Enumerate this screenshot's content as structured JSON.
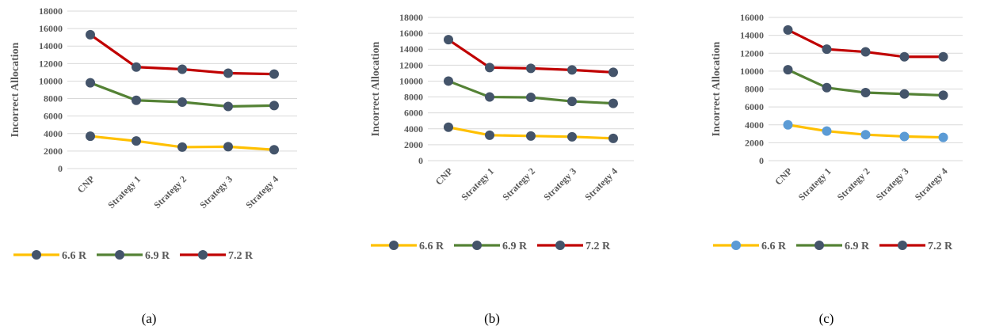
{
  "colors": {
    "axis_text": "#595959",
    "grid": "#d9d9d9",
    "marker": "#44546a",
    "marker_light": "#5b9bd5"
  },
  "chart_data": [
    {
      "type": "line",
      "caption": "(a)",
      "ylabel": "Incorrect Allocation",
      "categories": [
        "CNP",
        "Strategy 1",
        "Strategy 2",
        "Strategy 3",
        "Strategy 4"
      ],
      "ylim": [
        0,
        18000
      ],
      "yticks": [
        0,
        2000,
        4000,
        6000,
        8000,
        10000,
        12000,
        14000,
        16000,
        18000
      ],
      "grid": true,
      "legend_position": "bottom",
      "series": [
        {
          "name": "6.6 R",
          "color": "#ffc000",
          "marker_color": "#44546a",
          "values": [
            3700,
            3150,
            2450,
            2500,
            2150
          ]
        },
        {
          "name": "6.9 R",
          "color": "#548235",
          "marker_color": "#44546a",
          "values": [
            9800,
            7800,
            7600,
            7100,
            7200
          ]
        },
        {
          "name": "7.2 R",
          "color": "#c00000",
          "marker_color": "#44546a",
          "values": [
            15300,
            11600,
            11350,
            10900,
            10800
          ]
        }
      ]
    },
    {
      "type": "line",
      "caption": "(b)",
      "ylabel": "Incorrect Allocation",
      "categories": [
        "CNP",
        "Strategy 1",
        "Strategy 2",
        "Strategy 3",
        "Strategy 4"
      ],
      "ylim": [
        0,
        18000
      ],
      "yticks": [
        0,
        2000,
        4000,
        6000,
        8000,
        10000,
        12000,
        14000,
        16000,
        18000
      ],
      "grid": true,
      "legend_position": "bottom",
      "series": [
        {
          "name": "6.6 R",
          "color": "#ffc000",
          "marker_color": "#44546a",
          "values": [
            4200,
            3200,
            3100,
            3000,
            2800
          ]
        },
        {
          "name": "6.9 R",
          "color": "#548235",
          "marker_color": "#44546a",
          "values": [
            10000,
            8000,
            7950,
            7450,
            7200
          ]
        },
        {
          "name": "7.2 R",
          "color": "#c00000",
          "marker_color": "#44546a",
          "values": [
            15200,
            11700,
            11600,
            11400,
            11100
          ]
        }
      ]
    },
    {
      "type": "line",
      "caption": "(c)",
      "ylabel": "Incorrect Allocation",
      "categories": [
        "CNP",
        "Strategy 1",
        "Strategy 2",
        "Strategy 3",
        "Strategy 4"
      ],
      "ylim": [
        0,
        16000
      ],
      "yticks": [
        0,
        2000,
        4000,
        6000,
        8000,
        10000,
        12000,
        14000,
        16000
      ],
      "grid": true,
      "legend_position": "bottom",
      "series": [
        {
          "name": "6.6 R",
          "color": "#ffc000",
          "marker_color": "#5b9bd5",
          "values": [
            4000,
            3300,
            2900,
            2700,
            2600
          ]
        },
        {
          "name": "6.9 R",
          "color": "#548235",
          "marker_color": "#44546a",
          "values": [
            10150,
            8150,
            7600,
            7450,
            7300
          ]
        },
        {
          "name": "7.2 R",
          "color": "#c00000",
          "marker_color": "#44546a",
          "values": [
            14600,
            12450,
            12150,
            11600,
            11600
          ]
        }
      ]
    }
  ]
}
